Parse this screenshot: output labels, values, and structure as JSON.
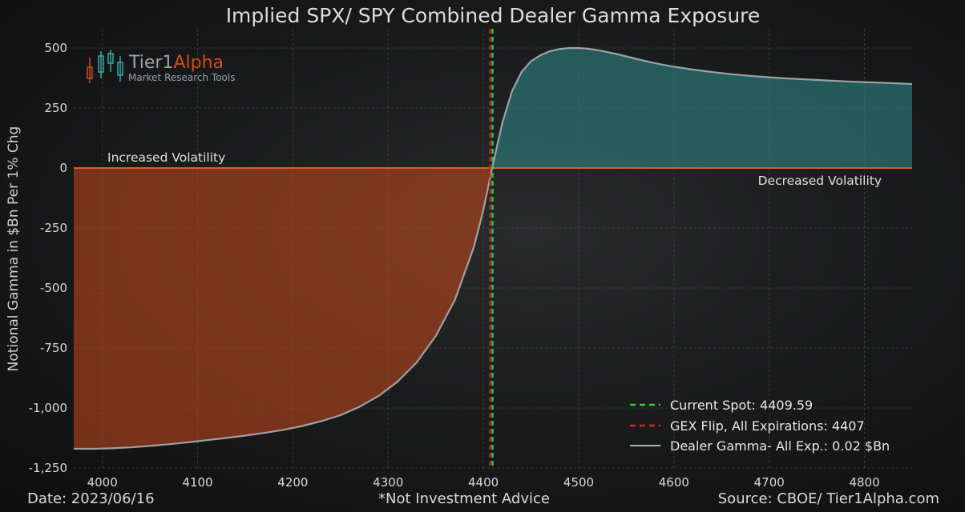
{
  "colors": {
    "positive_fill": "#2f8f8f",
    "negative_fill": "#c94a1c",
    "zero_line": "#e05a20",
    "curve": "#b0b4b8",
    "spot_line": "#2ecc40",
    "flip_line": "#e0201e",
    "grid": "#5a5a5a",
    "logo_gray": "#9aa3ab",
    "logo_orange": "#d24a1a",
    "logo_teal": "#3aa8a8"
  },
  "logo": {
    "name_part1": "Tier1",
    "name_part2": "Alpha",
    "subtitle": "Market Research Tools",
    "icon": "candlestick-icon"
  },
  "footer": {
    "date": "Date: 2023/06/16",
    "disclaimer": "*Not Investment Advice",
    "source": "Source: CBOE/ Tier1Alpha.com"
  },
  "chart_data": {
    "type": "area",
    "title": "Implied SPX/ SPY Combined Dealer Gamma Exposure",
    "xlabel": "",
    "ylabel": "Notional Gamma in $Bn Per 1% Chg",
    "xlim": [
      3970,
      4850
    ],
    "ylim": [
      -1250,
      580
    ],
    "x_ticks": [
      4000,
      4100,
      4200,
      4300,
      4400,
      4500,
      4600,
      4700,
      4800
    ],
    "y_ticks": [
      {
        "value": 500,
        "label": "500"
      },
      {
        "value": 250,
        "label": "250"
      },
      {
        "value": 0,
        "label": "0"
      },
      {
        "value": -250,
        "label": "-250"
      },
      {
        "value": -500,
        "label": "-500"
      },
      {
        "value": -750,
        "label": "-750"
      },
      {
        "value": -1000,
        "label": "-1,000"
      },
      {
        "value": -1250,
        "label": "-1,250"
      }
    ],
    "grid": true,
    "legend_position": "bottom-right",
    "annotations": {
      "increased": "Increased Volatility",
      "decreased": "Decreased Volatility"
    },
    "current_spot": {
      "value": 4409.59,
      "label": "Current Spot: 4409.59"
    },
    "gex_flip": {
      "value": 4407,
      "label": "GEX Flip, All Expirations: 4407"
    },
    "series": [
      {
        "name": "Dealer Gamma- All Exp.: 0.02 $Bn",
        "x": [
          3970,
          3990,
          4010,
          4030,
          4050,
          4070,
          4090,
          4110,
          4130,
          4150,
          4170,
          4190,
          4210,
          4230,
          4250,
          4270,
          4290,
          4310,
          4330,
          4350,
          4370,
          4390,
          4400,
          4410,
          4420,
          4430,
          4440,
          4450,
          4460,
          4470,
          4480,
          4490,
          4500,
          4510,
          4520,
          4540,
          4560,
          4580,
          4600,
          4620,
          4640,
          4660,
          4680,
          4700,
          4720,
          4740,
          4760,
          4780,
          4800,
          4820,
          4850
        ],
        "y": [
          -1170,
          -1170,
          -1168,
          -1164,
          -1158,
          -1151,
          -1143,
          -1134,
          -1125,
          -1115,
          -1104,
          -1091,
          -1075,
          -1055,
          -1030,
          -995,
          -950,
          -890,
          -810,
          -700,
          -550,
          -330,
          -175,
          15,
          190,
          320,
          400,
          445,
          470,
          487,
          496,
          500,
          500,
          497,
          491,
          475,
          455,
          437,
          422,
          410,
          400,
          391,
          384,
          378,
          373,
          369,
          365,
          361,
          358,
          355,
          350
        ]
      }
    ]
  }
}
